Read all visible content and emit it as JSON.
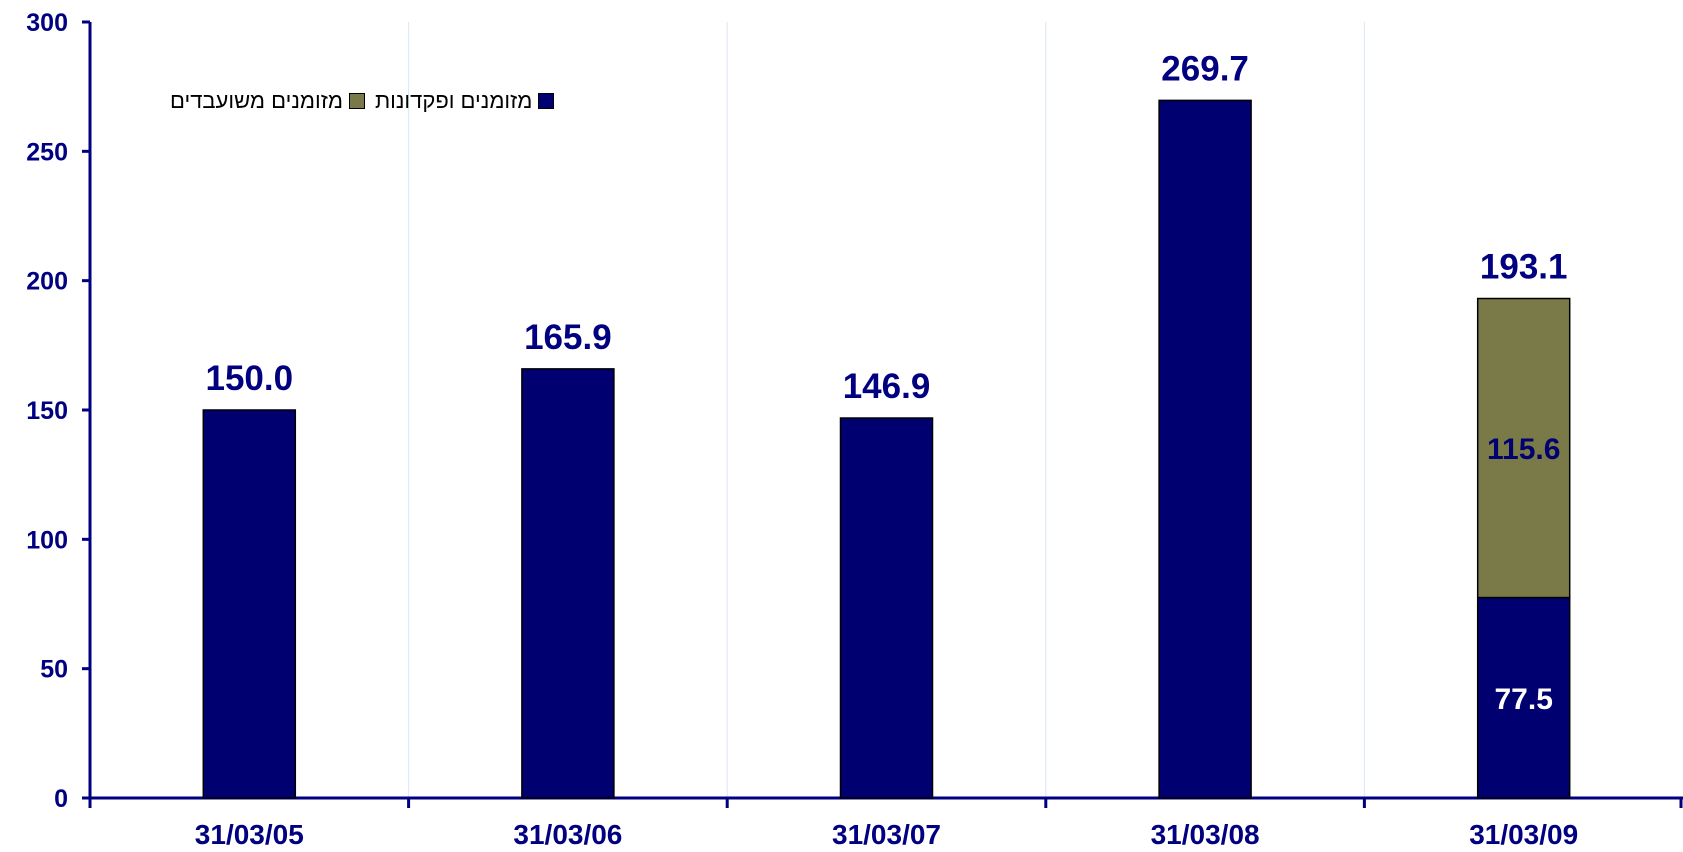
{
  "chart_data": {
    "type": "bar",
    "stacked": true,
    "title": "",
    "xlabel": "",
    "ylabel": "",
    "categories": [
      "31/03/05",
      "31/03/06",
      "31/03/07",
      "31/03/08",
      "31/03/09"
    ],
    "series": [
      {
        "name": "מזומנים ופקדונות",
        "color": "#000070",
        "values": [
          150.0,
          165.9,
          146.9,
          269.7,
          77.5
        ]
      },
      {
        "name": "מזומנים משועבדים",
        "color": "#7A7A48",
        "values": [
          0,
          0,
          0,
          0,
          115.6
        ]
      }
    ],
    "totals": [
      "150.0",
      "165.9",
      "146.9",
      "269.7",
      "193.1"
    ],
    "segment_labels": [
      {
        "category": "31/03/09",
        "series": "מזומנים ופקדונות",
        "label": "77.5",
        "color": "#ffffff"
      },
      {
        "category": "31/03/09",
        "series": "מזומנים משועבדים",
        "label": "115.6",
        "color": "#000070"
      }
    ],
    "ylim": [
      0,
      300
    ],
    "yticks": [
      0,
      50,
      100,
      150,
      200,
      250,
      300
    ],
    "grid": "vertical",
    "legend_position": "top-left",
    "colors": {
      "axis": "#000080",
      "label": "#000080",
      "grid": "#dbe8f4"
    }
  }
}
